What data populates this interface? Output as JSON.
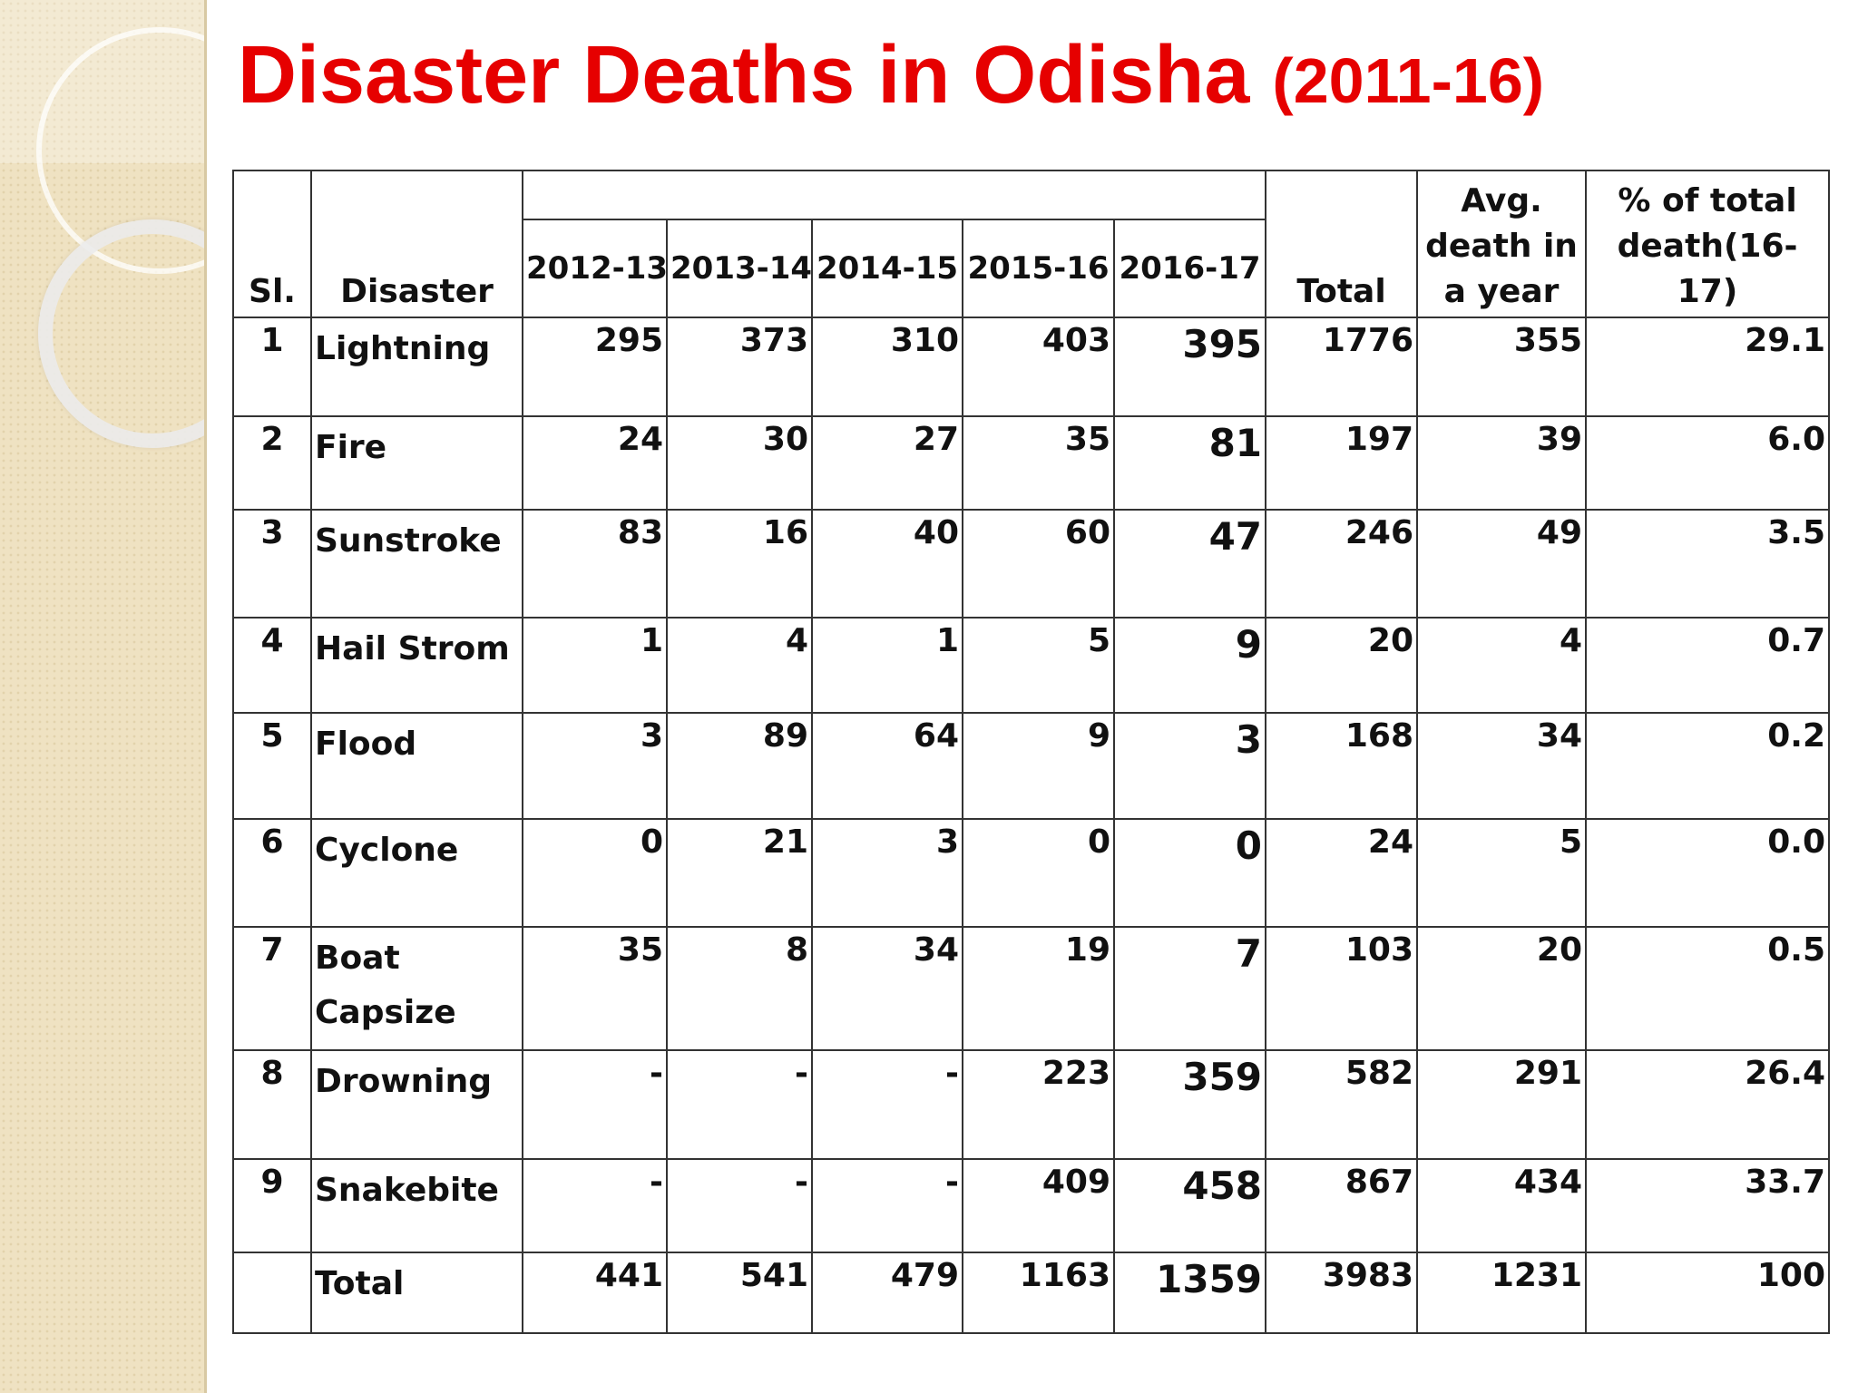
{
  "title": {
    "main": "Disaster Deaths in Odisha",
    "years": "(2011-16)"
  },
  "table": {
    "headers": {
      "sl": "Sl.",
      "disaster": "Disaster",
      "years": [
        "2012-13",
        "2013-14",
        "2014-15",
        "2015-16",
        "2016-17"
      ],
      "total": "Total",
      "avg": "Avg. death in a year",
      "pct": "% of total death(16-17)"
    },
    "rows": [
      {
        "sl": "1",
        "name": "Lightning",
        "y1": "295",
        "y2": "373",
        "y3": "310",
        "y4": "403",
        "y5": "395",
        "total": "1776",
        "avg": "355",
        "pct": "29.1"
      },
      {
        "sl": "2",
        "name": "Fire",
        "y1": "24",
        "y2": "30",
        "y3": "27",
        "y4": "35",
        "y5": "81",
        "total": "197",
        "avg": "39",
        "pct": "6.0"
      },
      {
        "sl": "3",
        "name": "Sunstroke",
        "y1": "83",
        "y2": "16",
        "y3": "40",
        "y4": "60",
        "y5": "47",
        "total": "246",
        "avg": "49",
        "pct": "3.5"
      },
      {
        "sl": "4",
        "name": "Hail Strom",
        "y1": "1",
        "y2": "4",
        "y3": "1",
        "y4": "5",
        "y5": "9",
        "total": "20",
        "avg": "4",
        "pct": "0.7"
      },
      {
        "sl": "5",
        "name": "Flood",
        "y1": "3",
        "y2": "89",
        "y3": "64",
        "y4": "9",
        "y5": "3",
        "total": "168",
        "avg": "34",
        "pct": "0.2"
      },
      {
        "sl": "6",
        "name": "Cyclone",
        "y1": "0",
        "y2": "21",
        "y3": "3",
        "y4": "0",
        "y5": "0",
        "total": "24",
        "avg": "5",
        "pct": "0.0"
      },
      {
        "sl": "7",
        "name": "Boat Capsize",
        "y1": "35",
        "y2": "8",
        "y3": "34",
        "y4": "19",
        "y5": "7",
        "total": "103",
        "avg": "20",
        "pct": "0.5"
      },
      {
        "sl": "8",
        "name": "Drowning",
        "y1": "-",
        "y2": "-",
        "y3": "-",
        "y4": "223",
        "y5": "359",
        "total": "582",
        "avg": "291",
        "pct": "26.4"
      },
      {
        "sl": "9",
        "name": "Snakebite",
        "y1": "-",
        "y2": "-",
        "y3": "-",
        "y4": "409",
        "y5": "458",
        "total": "867",
        "avg": "434",
        "pct": "33.7"
      },
      {
        "sl": "",
        "name": "Total",
        "y1": "441",
        "y2": "541",
        "y3": "479",
        "y4": "1163",
        "y5": "1359",
        "total": "3983",
        "avg": "1231",
        "pct": "100"
      }
    ]
  }
}
